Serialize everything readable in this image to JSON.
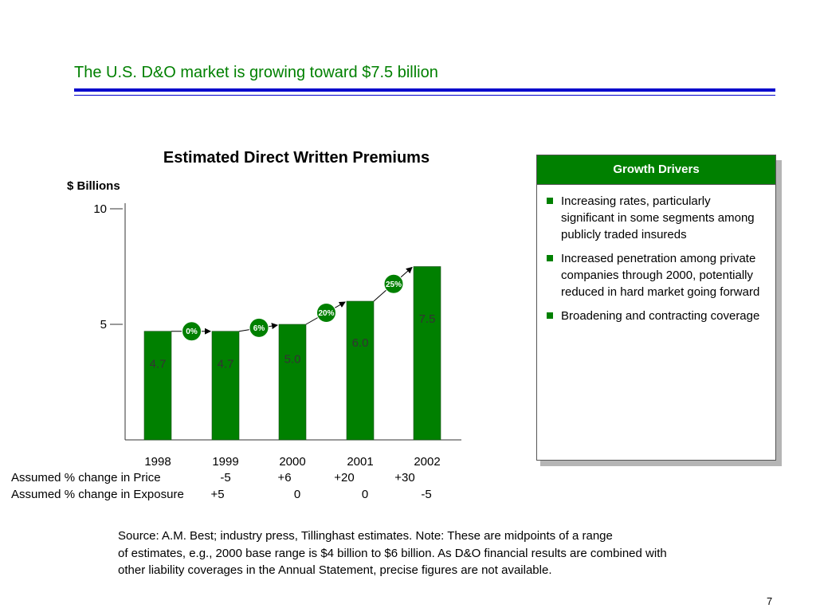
{
  "slide": {
    "title": "The U.S. D&O market is growing toward $7.5 billion",
    "page_number": "7",
    "source": [
      "Source: A.M. Best; industry press, Tillinghast estimates. Note: These are midpoints of a range",
      "of estimates, e.g., 2000 base range is $4 billion to $6 billion. As D&O financial results are combined with",
      "other liability coverages in the Annual Statement, precise figures are not available."
    ]
  },
  "chart_data": {
    "type": "bar",
    "title": "Estimated Direct Written Premiums",
    "ylabel": "$ Billions",
    "xlabel": "",
    "categories": [
      "1998",
      "1999",
      "2000",
      "2001",
      "2002"
    ],
    "values": [
      4.7,
      4.7,
      5.0,
      6.0,
      7.5
    ],
    "value_labels": [
      "4.7",
      "4.7",
      "5.0",
      "6.0",
      "7.5"
    ],
    "growth_labels": [
      "0%",
      "6%",
      "20%",
      "25%"
    ],
    "yticks": [
      "5",
      "10"
    ],
    "ylim": [
      0,
      10
    ],
    "grid": false,
    "bar_color": "#008000",
    "label_color": "#333333"
  },
  "assumptions": {
    "price": {
      "label": "Assumed % change in Price",
      "values": [
        "-5",
        "+6",
        "+20",
        "+30"
      ]
    },
    "exposure": {
      "label": "Assumed % change in Exposure",
      "values": [
        "+5",
        "0",
        "0",
        "-5"
      ]
    }
  },
  "drivers": {
    "header": "Growth Drivers",
    "items": [
      "Increasing rates, particularly significant in some segments among publicly traded insureds",
      "Increased penetration among private companies through 2000, potentially reduced in hard market going forward",
      "Broadening and contracting coverage"
    ]
  },
  "colors": {
    "title": "#008000",
    "accent": "#0000cc"
  }
}
